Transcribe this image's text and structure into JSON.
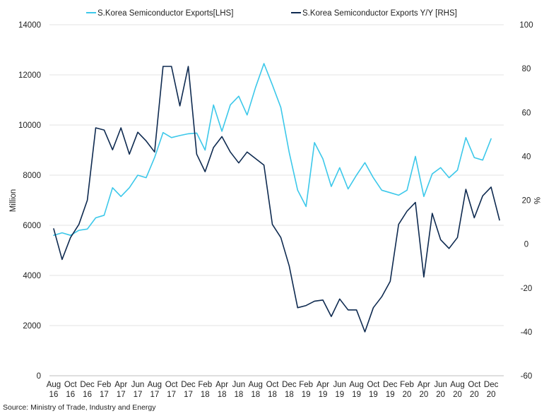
{
  "chart_data": {
    "type": "line",
    "categories": [
      "Aug 16",
      "Sep 16",
      "Oct 16",
      "Nov 16",
      "Dec 16",
      "Jan 17",
      "Feb 17",
      "Mar 17",
      "Apr 17",
      "May 17",
      "Jun 17",
      "Jul 17",
      "Aug 17",
      "Sep 17",
      "Oct 17",
      "Nov 17",
      "Dec 17",
      "Jan 18",
      "Feb 18",
      "Mar 18",
      "Apr 18",
      "May 18",
      "Jun 18",
      "Jul 18",
      "Aug 18",
      "Sep 18",
      "Oct 18",
      "Nov 18",
      "Dec 18",
      "Jan 19",
      "Feb 19",
      "Mar 19",
      "Apr 19",
      "May 19",
      "Jun 19",
      "Jul 19",
      "Aug 19",
      "Sep 19",
      "Oct 19",
      "Nov 19",
      "Dec 19",
      "Jan 20",
      "Feb 20",
      "Mar 20",
      "Apr 20",
      "May 20",
      "Jun 20",
      "Jul 20",
      "Aug 20",
      "Sep 20",
      "Oct 20",
      "Nov 20",
      "Dec 20",
      "Jan 21"
    ],
    "x_tick_labels": [
      {
        "month": "Aug",
        "year": "16"
      },
      {
        "month": "Oct",
        "year": "16"
      },
      {
        "month": "Dec",
        "year": "16"
      },
      {
        "month": "Feb",
        "year": "17"
      },
      {
        "month": "Apr",
        "year": "17"
      },
      {
        "month": "Jun",
        "year": "17"
      },
      {
        "month": "Aug",
        "year": "17"
      },
      {
        "month": "Oct",
        "year": "17"
      },
      {
        "month": "Dec",
        "year": "17"
      },
      {
        "month": "Feb",
        "year": "18"
      },
      {
        "month": "Apr",
        "year": "18"
      },
      {
        "month": "Jun",
        "year": "18"
      },
      {
        "month": "Aug",
        "year": "18"
      },
      {
        "month": "Oct",
        "year": "18"
      },
      {
        "month": "Dec",
        "year": "18"
      },
      {
        "month": "Feb",
        "year": "19"
      },
      {
        "month": "Apr",
        "year": "19"
      },
      {
        "month": "Jun",
        "year": "19"
      },
      {
        "month": "Aug",
        "year": "19"
      },
      {
        "month": "Oct",
        "year": "19"
      },
      {
        "month": "Dec",
        "year": "19"
      },
      {
        "month": "Feb",
        "year": "20"
      },
      {
        "month": "Apr",
        "year": "20"
      },
      {
        "month": "Jun",
        "year": "20"
      },
      {
        "month": "Aug",
        "year": "20"
      },
      {
        "month": "Oct",
        "year": "20"
      },
      {
        "month": "Dec",
        "year": "20"
      }
    ],
    "series": [
      {
        "name": "S.Korea Semiconductor Exports[LHS]",
        "axis": "left",
        "color": "#3cc8ea",
        "values": [
          5600,
          5700,
          5600,
          5800,
          5850,
          6300,
          6400,
          7500,
          7150,
          7500,
          8000,
          7900,
          8700,
          9700,
          9500,
          9580,
          9650,
          9680,
          9000,
          10800,
          9750,
          10800,
          11150,
          10400,
          11500,
          12450,
          11600,
          10700,
          8900,
          7400,
          6750,
          9300,
          8650,
          7550,
          8300,
          7450,
          8000,
          8500,
          7900,
          7400,
          7300,
          7200,
          7400,
          8750,
          7150,
          8050,
          8300,
          7900,
          8200,
          9500,
          8700,
          8600,
          9450,
          null
        ]
      },
      {
        "name": "S.Korea Semiconductor Exports Y/Y [RHS]",
        "axis": "right",
        "color": "#0e2a50",
        "values": [
          7,
          -7,
          3,
          9,
          20,
          53,
          52,
          43,
          53,
          41,
          51,
          47,
          42,
          81,
          81,
          63,
          81,
          41,
          33,
          44,
          49,
          42,
          37,
          42,
          39,
          36,
          9,
          3,
          -10,
          -29,
          -28,
          -26,
          -25.5,
          -33,
          -25,
          -30,
          -30,
          -40,
          -29,
          -24,
          -17,
          9,
          15,
          19,
          -15,
          14,
          2,
          -2,
          3,
          25,
          12,
          22,
          26,
          11
        ]
      }
    ],
    "y_left": {
      "label": "Million",
      "min": 0,
      "max": 14000,
      "ticks": [
        0,
        2000,
        4000,
        6000,
        8000,
        10000,
        12000,
        14000
      ]
    },
    "y_right": {
      "label": "%",
      "min": -60,
      "max": 100,
      "ticks": [
        -60,
        -40,
        -20,
        0,
        20,
        40,
        60,
        80,
        100
      ]
    },
    "grid": true,
    "legend_position": "top"
  },
  "source": "Source: Ministry of Trade, Industry and Energy"
}
